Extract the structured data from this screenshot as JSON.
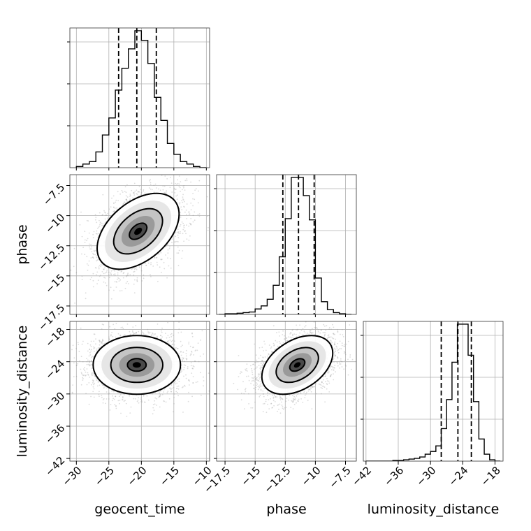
{
  "chart_data": {
    "type": "corner",
    "parameters": [
      "geocent_time",
      "phase",
      "luminosity_distance"
    ],
    "axis_labels": {
      "x": [
        "geocent_time",
        "phase",
        "luminosity_distance"
      ],
      "y": [
        "phase",
        "luminosity_distance"
      ]
    },
    "ranges": {
      "geocent_time": [
        -31,
        -9.5
      ],
      "phase": [
        -18.2,
        -6.6
      ],
      "luminosity_distance": [
        -42.5,
        -16.5
      ]
    },
    "ticks": {
      "geocent_time": [
        -30,
        -25,
        -20,
        -15,
        -10
      ],
      "phase": [
        -17.5,
        -15.0,
        -12.5,
        -10.0,
        -7.5
      ],
      "luminosity_distance": [
        -42,
        -36,
        -30,
        -24,
        -18
      ]
    },
    "quantiles": {
      "geocent_time": [
        -23.5,
        -20.7,
        -17.7
      ],
      "phase": [
        -12.7,
        -11.4,
        -10.1
      ],
      "luminosity_distance": [
        -28.0,
        -24.9,
        -22.4
      ]
    },
    "histograms": {
      "geocent_time": {
        "bin_edges": [
          -30,
          -29,
          -28,
          -27,
          -26,
          -25,
          -24,
          -23,
          -22,
          -21,
          -20,
          -19,
          -18,
          -17,
          -16,
          -15,
          -14,
          -13,
          -12,
          -11,
          -10
        ],
        "counts": [
          1,
          3,
          5,
          13,
          27,
          41,
          64,
          82,
          98,
          113,
          105,
          86,
          58,
          39,
          20,
          11,
          5,
          3,
          1,
          0
        ]
      },
      "phase": {
        "bin_edges": [
          -18,
          -17.5,
          -17,
          -16.5,
          -16,
          -15.5,
          -15,
          -14.5,
          -14,
          -13.5,
          -13,
          -12.5,
          -12,
          -11.5,
          -11,
          -10.5,
          -10,
          -9.5,
          -9,
          -8.5,
          -8,
          -7.5,
          -7
        ],
        "counts": [
          0,
          1,
          1,
          2,
          3,
          4,
          9,
          14,
          25,
          48,
          95,
          158,
          226,
          226,
          196,
          156,
          60,
          21,
          8,
          3,
          1,
          0
        ]
      },
      "luminosity_distance": {
        "bin_edges": [
          -42,
          -41,
          -40,
          -39,
          -38,
          -37,
          -36,
          -35,
          -34,
          -33,
          -32,
          -31,
          -30,
          -29,
          -28,
          -27,
          -26,
          -25,
          -24,
          -23,
          -22,
          -21,
          -20,
          -19,
          -18,
          -17
        ],
        "counts": [
          0,
          0,
          0,
          0,
          0,
          1,
          1,
          2,
          3,
          4,
          6,
          10,
          14,
          22,
          47,
          89,
          143,
          198,
          198,
          153,
          86,
          32,
          10,
          2,
          0
        ]
      }
    },
    "posterior_2d": {
      "phase_vs_geocent_time": {
        "x_mean": -20.5,
        "y_mean": -11.3,
        "x_sd": 3.0,
        "y_sd": 1.5,
        "correlation": 0.45
      },
      "luminosity_distance_vs_geocent_time": {
        "x_mean": -20.7,
        "y_mean": -24.6,
        "x_sd": 3.2,
        "y_sd": 2.6,
        "correlation": 0.0
      },
      "luminosity_distance_vs_phase": {
        "x_mean": -11.5,
        "y_mean": -24.6,
        "x_sd": 1.4,
        "y_sd": 2.6,
        "correlation": 0.4
      }
    },
    "grid": true,
    "legend": "none"
  }
}
